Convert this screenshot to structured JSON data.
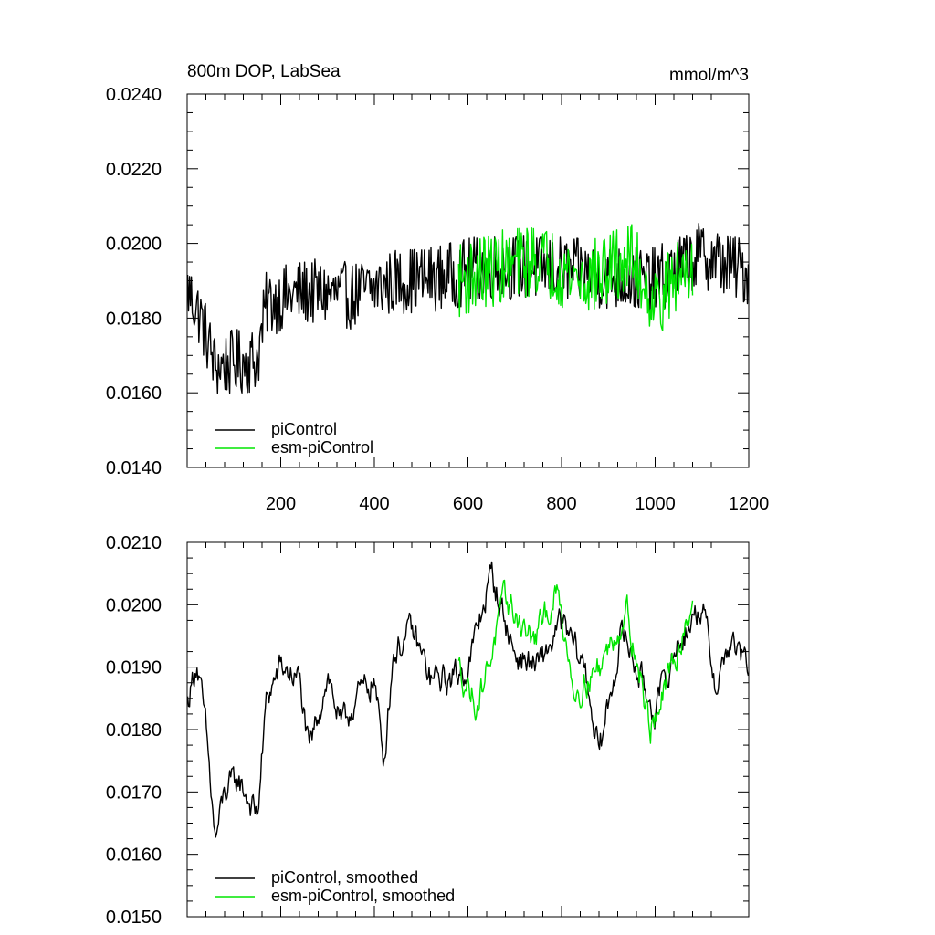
{
  "chart_data": [
    {
      "type": "line",
      "title": "800m DOP, LabSea",
      "units_label": "mmol/m^3",
      "xlabel": "",
      "ylabel": "",
      "xlim": [
        0,
        1200
      ],
      "ylim": [
        0.014,
        0.024
      ],
      "x_tick_labels": [
        "200",
        "400",
        "600",
        "800",
        "1000",
        "1200"
      ],
      "y_tick_labels": [
        "0.0140",
        "0.0160",
        "0.0180",
        "0.0200",
        "0.0220",
        "0.0240"
      ],
      "legend_position": "bottom-left",
      "series": [
        {
          "name": "piControl",
          "color": "#000000",
          "x_range": [
            1,
            1200
          ],
          "trend": [
            [
              0,
              0.0188
            ],
            [
              30,
              0.018
            ],
            [
              60,
              0.0167
            ],
            [
              100,
              0.0168
            ],
            [
              150,
              0.0169
            ],
            [
              170,
              0.0184
            ],
            [
              250,
              0.0187
            ],
            [
              350,
              0.0186
            ],
            [
              450,
              0.019
            ],
            [
              550,
              0.0191
            ],
            [
              650,
              0.0194
            ],
            [
              800,
              0.0193
            ],
            [
              900,
              0.0191
            ],
            [
              1000,
              0.019
            ],
            [
              1100,
              0.0197
            ],
            [
              1200,
              0.0192
            ]
          ],
          "noise_amplitude": 0.0009
        },
        {
          "name": "esm-piControl",
          "color": "#00e600",
          "x_range": [
            580,
            1080
          ],
          "trend": [
            [
              580,
              0.019
            ],
            [
              650,
              0.0193
            ],
            [
              750,
              0.0196
            ],
            [
              850,
              0.019
            ],
            [
              950,
              0.0196
            ],
            [
              1000,
              0.0184
            ],
            [
              1080,
              0.0196
            ]
          ],
          "noise_amplitude": 0.001
        }
      ]
    },
    {
      "type": "line",
      "title": "",
      "xlabel": "",
      "ylabel": "",
      "xlim": [
        0,
        1200
      ],
      "ylim": [
        0.015,
        0.021
      ],
      "x_tick_labels": [],
      "y_tick_labels": [
        "0.0150",
        "0.0160",
        "0.0170",
        "0.0180",
        "0.0190",
        "0.0200",
        "0.0210"
      ],
      "legend_position": "bottom-left",
      "series": [
        {
          "name": "piControl, smoothed",
          "color": "#000000",
          "x_range": [
            1,
            1200
          ],
          "trend": [
            [
              0,
              0.0184
            ],
            [
              20,
              0.0191
            ],
            [
              40,
              0.018
            ],
            [
              60,
              0.0162
            ],
            [
              80,
              0.017
            ],
            [
              110,
              0.0172
            ],
            [
              150,
              0.0166
            ],
            [
              170,
              0.0185
            ],
            [
              200,
              0.019
            ],
            [
              240,
              0.0188
            ],
            [
              260,
              0.0176
            ],
            [
              300,
              0.0189
            ],
            [
              330,
              0.018
            ],
            [
              360,
              0.0185
            ],
            [
              400,
              0.0188
            ],
            [
              420,
              0.0175
            ],
            [
              440,
              0.0192
            ],
            [
              480,
              0.0196
            ],
            [
              520,
              0.0188
            ],
            [
              560,
              0.0188
            ],
            [
              600,
              0.019
            ],
            [
              650,
              0.0205
            ],
            [
              700,
              0.0192
            ],
            [
              750,
              0.019
            ],
            [
              800,
              0.0197
            ],
            [
              850,
              0.019
            ],
            [
              880,
              0.0176
            ],
            [
              930,
              0.0196
            ],
            [
              980,
              0.0186
            ],
            [
              1000,
              0.0183
            ],
            [
              1050,
              0.0194
            ],
            [
              1100,
              0.02
            ],
            [
              1130,
              0.0187
            ],
            [
              1160,
              0.0194
            ],
            [
              1200,
              0.019
            ]
          ],
          "noise_amplitude": 0.0003
        },
        {
          "name": "esm-piControl, smoothed",
          "color": "#00e600",
          "x_range": [
            580,
            1080
          ],
          "trend": [
            [
              580,
              0.019
            ],
            [
              620,
              0.0184
            ],
            [
              680,
              0.0201
            ],
            [
              740,
              0.0194
            ],
            [
              790,
              0.0202
            ],
            [
              830,
              0.0186
            ],
            [
              880,
              0.019
            ],
            [
              940,
              0.0199
            ],
            [
              990,
              0.018
            ],
            [
              1030,
              0.0188
            ],
            [
              1080,
              0.0201
            ]
          ],
          "noise_amplitude": 0.0003
        }
      ]
    }
  ]
}
